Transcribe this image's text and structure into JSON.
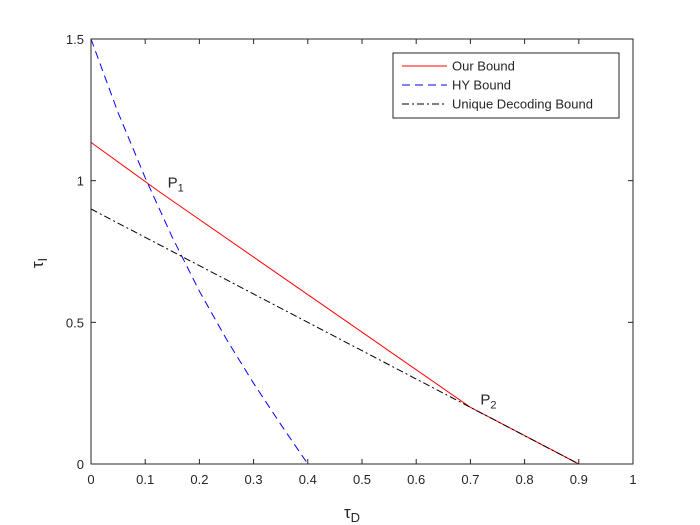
{
  "chart_data": {
    "type": "line",
    "xlabel": "τ",
    "xlabel_sub": "D",
    "ylabel": "τ",
    "ylabel_sub": "I",
    "xlim": [
      0,
      1
    ],
    "ylim": [
      0,
      1.5
    ],
    "xticks": [
      0,
      0.1,
      0.2,
      0.3,
      0.4,
      0.5,
      0.6,
      0.7,
      0.8,
      0.9,
      1
    ],
    "xtick_labels": [
      "0",
      "0.1",
      "0.2",
      "0.3",
      "0.4",
      "0.5",
      "0.6",
      "0.7",
      "0.8",
      "0.9",
      "1"
    ],
    "yticks": [
      0,
      0.5,
      1,
      1.5
    ],
    "ytick_labels": [
      "0",
      "0.5",
      "1",
      "1.5"
    ],
    "grid": false,
    "legend_position": "top-right",
    "series": [
      {
        "name": "Our Bound",
        "color": "#ff0000",
        "dash": "solid",
        "x": [
          0,
          0.123,
          0.7,
          0.9
        ],
        "y": [
          1.135,
          0.965,
          0.2,
          0
        ]
      },
      {
        "name": "HY Bound",
        "color": "#0000ff",
        "dash": "dashed",
        "x": [
          0,
          0.05,
          0.1,
          0.15,
          0.2,
          0.25,
          0.3,
          0.35,
          0.4
        ],
        "y": [
          1.5,
          1.24,
          1.01,
          0.8,
          0.61,
          0.44,
          0.285,
          0.14,
          0
        ]
      },
      {
        "name": "Unique Decoding Bound",
        "color": "#000000",
        "dash": "dashdot",
        "x": [
          0,
          0.9
        ],
        "y": [
          0.9,
          0
        ]
      }
    ],
    "annotations": [
      {
        "label": "P",
        "sub": "1",
        "x": 0.123,
        "y": 0.965
      },
      {
        "label": "P",
        "sub": "2",
        "x": 0.7,
        "y": 0.2
      }
    ]
  }
}
